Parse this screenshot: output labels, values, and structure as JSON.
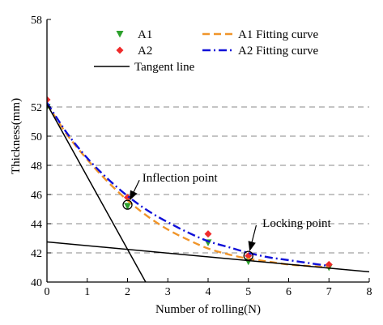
{
  "chart_data": {
    "type": "scatter",
    "xlabel": "Number of rolling(N)",
    "ylabel": "Thickness(mm)",
    "xlim": [
      0,
      8
    ],
    "ylim": [
      40,
      58
    ],
    "xticks": [
      0,
      1,
      2,
      3,
      4,
      5,
      6,
      7,
      8
    ],
    "yticks": [
      40,
      42,
      44,
      46,
      48,
      50,
      52,
      58
    ],
    "grid_y_dashed": [
      42,
      44,
      46,
      48,
      50,
      52
    ],
    "legend_position": "top",
    "series": [
      {
        "name": "A1",
        "kind": "marker",
        "marker": "triangle-down",
        "color": "#2ca02c",
        "x": [
          0,
          2,
          4,
          5,
          7
        ],
        "y": [
          52.0,
          45.2,
          42.7,
          41.4,
          41.0
        ]
      },
      {
        "name": "A2",
        "kind": "marker",
        "marker": "diamond",
        "color": "#ef2b2b",
        "x": [
          0,
          2,
          4,
          5,
          7
        ],
        "y": [
          52.5,
          45.8,
          43.3,
          41.8,
          41.2
        ]
      },
      {
        "name": "A1 Fitting curve",
        "kind": "line",
        "dash": "dash",
        "color": "#f0952a",
        "x": [
          0,
          0.5,
          1,
          1.5,
          2,
          2.5,
          3,
          3.5,
          4,
          4.5,
          5,
          5.5,
          6,
          6.5,
          7
        ],
        "y": [
          52.2,
          50.1,
          48.4,
          46.9,
          45.6,
          44.5,
          43.6,
          42.9,
          42.3,
          41.9,
          41.6,
          41.4,
          41.2,
          41.1,
          41.0
        ]
      },
      {
        "name": "A2 Fitting curve",
        "kind": "line",
        "dash": "dashdot",
        "color": "#1010d8",
        "x": [
          0,
          0.5,
          1,
          1.5,
          2,
          2.5,
          3,
          3.5,
          4,
          4.5,
          5,
          5.5,
          6,
          6.5,
          7
        ],
        "y": [
          52.3,
          50.2,
          48.5,
          47.1,
          45.9,
          44.9,
          44.1,
          43.4,
          42.8,
          42.4,
          42.0,
          41.7,
          41.5,
          41.3,
          41.1
        ]
      },
      {
        "name": "Tangent line",
        "kind": "line",
        "dash": "solid",
        "color": "#000000",
        "x": [
          0,
          2.45
        ],
        "y": [
          52.2,
          40
        ]
      },
      {
        "name": "",
        "kind": "line",
        "dash": "solid",
        "color": "#000000",
        "x": [
          0,
          8
        ],
        "y": [
          42.75,
          40.7
        ]
      }
    ],
    "annotations": [
      {
        "text": "Inflection point",
        "point": [
          2,
          45.3
        ],
        "text_anchor": [
          3.3,
          47.1
        ]
      },
      {
        "text": "Locking point",
        "point": [
          5,
          41.8
        ],
        "text_anchor": [
          6.2,
          44.0
        ]
      }
    ]
  }
}
